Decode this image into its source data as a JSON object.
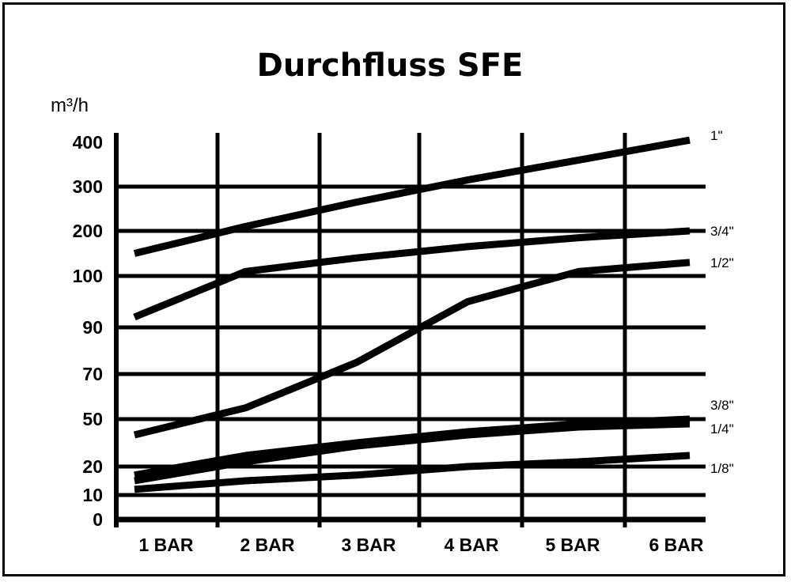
{
  "chart_data": {
    "type": "line",
    "title": "Durchfluss  SFE",
    "ylabel": "m³/h",
    "xlabel": "",
    "categories": [
      "1 BAR",
      "2 BAR",
      "3 BAR",
      "4 BAR",
      "5 BAR",
      "6 BAR"
    ],
    "y_ticks": [
      "0",
      "10",
      "20",
      "50",
      "70",
      "90",
      "100",
      "200",
      "300",
      "400"
    ],
    "grid": true,
    "legend": "series labels at right end of lines",
    "colors": {
      "line": "#000000",
      "background": "#ffffff"
    },
    "series": [
      {
        "name": "1\"",
        "values": [
          150,
          210,
          265,
          315,
          360,
          405
        ]
      },
      {
        "name": "3/4\"",
        "values": [
          92,
          110,
          140,
          165,
          185,
          200
        ]
      },
      {
        "name": "1/2\"",
        "values": [
          40,
          55,
          75,
          95,
          110,
          130
        ]
      },
      {
        "name": "3/8\"",
        "values": [
          17,
          27,
          35,
          42,
          47,
          50
        ]
      },
      {
        "name": "1/4\"",
        "values": [
          15,
          23,
          33,
          40,
          45,
          47
        ]
      },
      {
        "name": "1/8\"",
        "values": [
          12,
          15,
          17,
          20,
          23,
          27
        ]
      }
    ]
  }
}
